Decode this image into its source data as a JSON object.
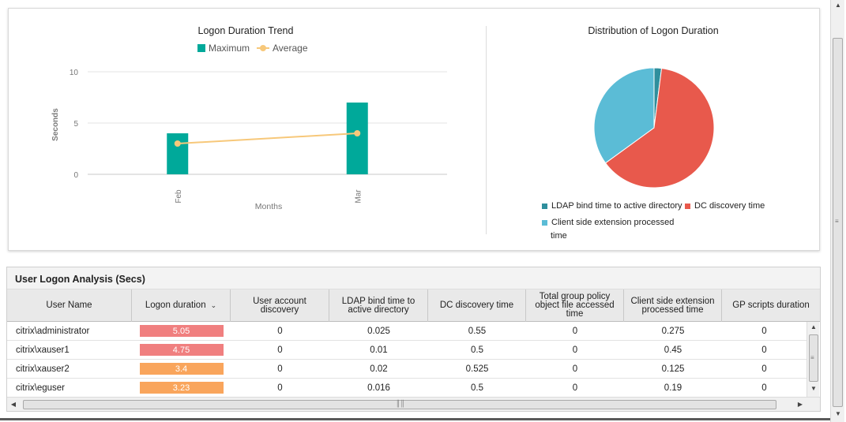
{
  "chart_data": [
    {
      "type": "bar",
      "title": "Logon Duration Trend",
      "categories": [
        "Feb",
        "Mar"
      ],
      "series": [
        {
          "name": "Maximum",
          "type": "bar",
          "color": "#00a99a",
          "values": [
            4,
            7
          ]
        },
        {
          "name": "Average",
          "type": "line",
          "color": "#f7c87a",
          "values": [
            3,
            4
          ]
        }
      ],
      "xlabel": "Months",
      "ylabel": "Seconds",
      "ylim": [
        0,
        10
      ],
      "yticks": [
        0,
        5,
        10
      ],
      "grid": true,
      "legend": "top"
    },
    {
      "type": "pie",
      "title": "Distribution of Logon Duration",
      "slices": [
        {
          "label": "LDAP bind time to active directory",
          "value": 0.02,
          "color": "#2f8f9d"
        },
        {
          "label": "DC discovery time",
          "value": 0.63,
          "color": "#e8594c"
        },
        {
          "label": "Client side extension processed time",
          "value": 0.35,
          "color": "#5bbcd6"
        }
      ],
      "legend": "bottom"
    }
  ],
  "legend_labels": {
    "client_line1": "Client side extension processed",
    "client_line2": "time"
  },
  "table": {
    "title": "User Logon Analysis (Secs)",
    "columns": [
      "User Name",
      "Logon duration",
      "User account discovery",
      "LDAP bind time to active directory",
      "DC discovery time",
      "Total group policy object file accessed time",
      "Client side extension processed time",
      "GP scripts duration"
    ],
    "rows": [
      {
        "user": "citrix\\administrator",
        "duration": "5.05",
        "duration_color": "#f07f7f",
        "account": "0",
        "ldap": "0.025",
        "dc": "0.55",
        "gpo": "0",
        "cse": "0.275",
        "gps": "0"
      },
      {
        "user": "citrix\\xauser1",
        "duration": "4.75",
        "duration_color": "#f07f7f",
        "account": "0",
        "ldap": "0.01",
        "dc": "0.5",
        "gpo": "0",
        "cse": "0.45",
        "gps": "0"
      },
      {
        "user": "citrix\\xauser2",
        "duration": "3.4",
        "duration_color": "#f9a55c",
        "account": "0",
        "ldap": "0.02",
        "dc": "0.525",
        "gpo": "0",
        "cse": "0.125",
        "gps": "0"
      },
      {
        "user": "citrix\\eguser",
        "duration": "3.23",
        "duration_color": "#f9a55c",
        "account": "0",
        "ldap": "0.016",
        "dc": "0.5",
        "gpo": "0",
        "cse": "0.19",
        "gps": "0"
      }
    ]
  }
}
